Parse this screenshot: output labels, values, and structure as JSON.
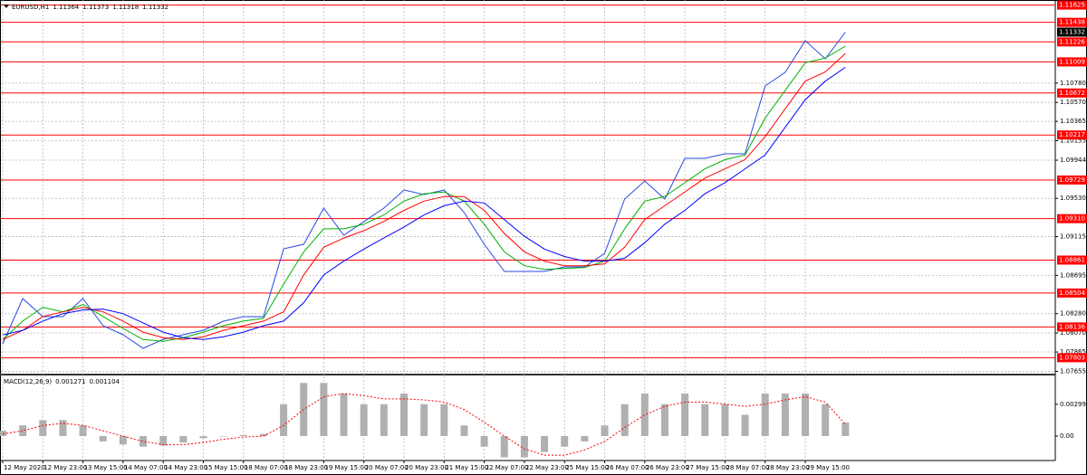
{
  "chart_data": [
    {
      "type": "line",
      "title": "EURUSD,H1",
      "open": 1.11364,
      "high": 1.11373,
      "low": 1.11318,
      "categories": [
        "12 May 2020",
        null,
        "12 May 23:00",
        null,
        "13 May 15:00",
        null,
        "14 May 07:00",
        null,
        "14 May 23:00",
        null,
        "15 May 15:00",
        null,
        "18 May 07:00",
        null,
        "18 May 23:00",
        null,
        "19 May 15:00",
        null,
        "20 May 07:00",
        null,
        "20 May 23:00",
        null,
        "21 May 15:00",
        null,
        "22 May 07:00",
        null,
        "22 May 23:00",
        null,
        "25 May 15:00",
        null,
        "26 May 07:00",
        null,
        "26 May 23:00",
        null,
        "27 May 15:00",
        null,
        "28 May 07:00",
        null,
        "28 May 23:00",
        null,
        "29 May 15:00",
        null,
        null
      ],
      "series": [
        {
          "color": "#2a48e0",
          "values": [
            1.07954,
            1.08444,
            1.08248,
            1.08248,
            1.08444,
            1.0815,
            1.08052,
            1.07905,
            1.08003,
            1.08052,
            1.08101,
            1.08199,
            1.08248,
            1.08248,
            1.08983,
            1.09032,
            1.09425,
            1.0913,
            1.09278,
            1.09425,
            1.09621,
            1.09572,
            1.09621,
            1.09376,
            1.09032,
            1.08738,
            1.08738,
            1.08738,
            1.08787,
            1.08787,
            1.08934,
            1.09523,
            1.09719,
            1.09523,
            1.09964,
            1.09964,
            1.10013,
            1.10013,
            1.10748,
            1.10896,
            1.11239,
            1.11043,
            1.11332
          ]
        },
        {
          "color": "#00b000",
          "values": [
            1.08,
            1.082,
            1.0835,
            1.083,
            1.0838,
            1.0825,
            1.0812,
            1.08,
            1.0798,
            1.0802,
            1.0808,
            1.0815,
            1.082,
            1.0823,
            1.086,
            1.0895,
            1.092,
            1.092,
            1.0925,
            1.0935,
            1.095,
            1.0958,
            1.096,
            1.095,
            1.0925,
            1.0895,
            1.088,
            1.0876,
            1.0877,
            1.0878,
            1.0885,
            1.092,
            1.095,
            1.0955,
            1.097,
            1.0985,
            1.0995,
            1.1,
            1.104,
            1.107,
            1.11,
            1.1105,
            1.1118
          ]
        },
        {
          "color": "#ff0000",
          "values": [
            1.08,
            1.081,
            1.0825,
            1.083,
            1.0835,
            1.083,
            1.082,
            1.0808,
            1.0802,
            1.08,
            1.0803,
            1.081,
            1.0815,
            1.082,
            1.083,
            1.087,
            1.09,
            1.091,
            1.0918,
            1.0928,
            1.094,
            1.095,
            1.0955,
            1.0955,
            1.094,
            1.0915,
            1.0895,
            1.0885,
            1.088,
            1.088,
            1.0882,
            1.09,
            1.093,
            1.0945,
            1.096,
            1.0975,
            1.0985,
            1.0995,
            1.102,
            1.105,
            1.108,
            1.109,
            1.111
          ]
        },
        {
          "color": "#0000ff",
          "values": [
            1.0805,
            1.081,
            1.082,
            1.0828,
            1.0832,
            1.0833,
            1.0828,
            1.0818,
            1.0808,
            1.0802,
            1.08,
            1.0803,
            1.0808,
            1.0815,
            1.082,
            1.084,
            1.087,
            1.0885,
            1.0898,
            1.091,
            1.0922,
            1.0935,
            1.0945,
            1.095,
            1.0948,
            1.093,
            1.0912,
            1.0898,
            1.089,
            1.0885,
            1.0885,
            1.0888,
            1.0905,
            1.0925,
            1.094,
            1.0958,
            1.097,
            1.0985,
            1.1,
            1.103,
            1.106,
            1.108,
            1.1095
          ]
        }
      ],
      "ylim": [
        1.0763,
        1.1168
      ],
      "yticks": [
        1.07655,
        1.07865,
        {
          "value": 1.0807,
          "label": "1.08070"
        },
        {
          "value": 1.0828,
          "label": "1.08280"
        },
        1.08695,
        1.09115,
        {
          "value": 1.0953,
          "label": "1.09530"
        },
        1.09944,
        1.10155,
        1.10365,
        {
          "value": 1.1057,
          "label": "1.10570"
        },
        {
          "value": 1.1078,
          "label": "1.10780"
        }
      ],
      "levels": [
        1.11625,
        1.11438,
        1.11226,
        1.11009,
        1.10672,
        1.10217,
        1.09729,
        {
          "value": 1.0931,
          "label": "1.09310"
        },
        1.08861,
        1.08504,
        1.08136,
        1.07803
      ],
      "level_color": "#ff0000",
      "grid": true
    },
    {
      "type": "bar",
      "title": "MACD(12,26,9)",
      "series": [
        {
          "color": "#b0b0b0",
          "style": "bar",
          "values": [
            0.0005,
            0.001,
            0.0015,
            0.0015,
            0.001,
            -0.0005,
            -0.0008,
            -0.001,
            -0.0009,
            -0.0006,
            -0.0002,
            0,
            0.0001,
            0.0002,
            0.003,
            0.005,
            0.005,
            0.004,
            0.003,
            0.003,
            0.004,
            0.003,
            0.003,
            0.001,
            -0.001,
            -0.002,
            -0.002,
            -0.0015,
            -0.001,
            -0.0005,
            0.001,
            0.003,
            0.004,
            0.003,
            0.004,
            0.003,
            0.003,
            0.002,
            0.004,
            0.004,
            0.004,
            0.003,
            0.001271
          ]
        },
        {
          "color": "#ff0000",
          "style": "dotted",
          "values": [
            0.0002,
            0.0005,
            0.001,
            0.0012,
            0.001,
            0.0005,
            0,
            -0.0005,
            -0.0008,
            -0.0008,
            -0.0006,
            -0.0003,
            -0.0001,
            0,
            0.001,
            0.0025,
            0.0037,
            0.004,
            0.0038,
            0.0035,
            0.0035,
            0.0034,
            0.0032,
            0.0025,
            0.0013,
            0,
            -0.0012,
            -0.0018,
            -0.0018,
            -0.0013,
            -0.0005,
            0.0008,
            0.002,
            0.0028,
            0.0032,
            0.0032,
            0.003,
            0.0028,
            0.003,
            0.0034,
            0.0037,
            0.0032,
            0.001104
          ]
        }
      ],
      "ylim": [
        -0.0023,
        0.0057
      ],
      "yticks": [
        {
          "value": 0,
          "label": "0.00"
        },
        0.00299
      ]
    }
  ]
}
